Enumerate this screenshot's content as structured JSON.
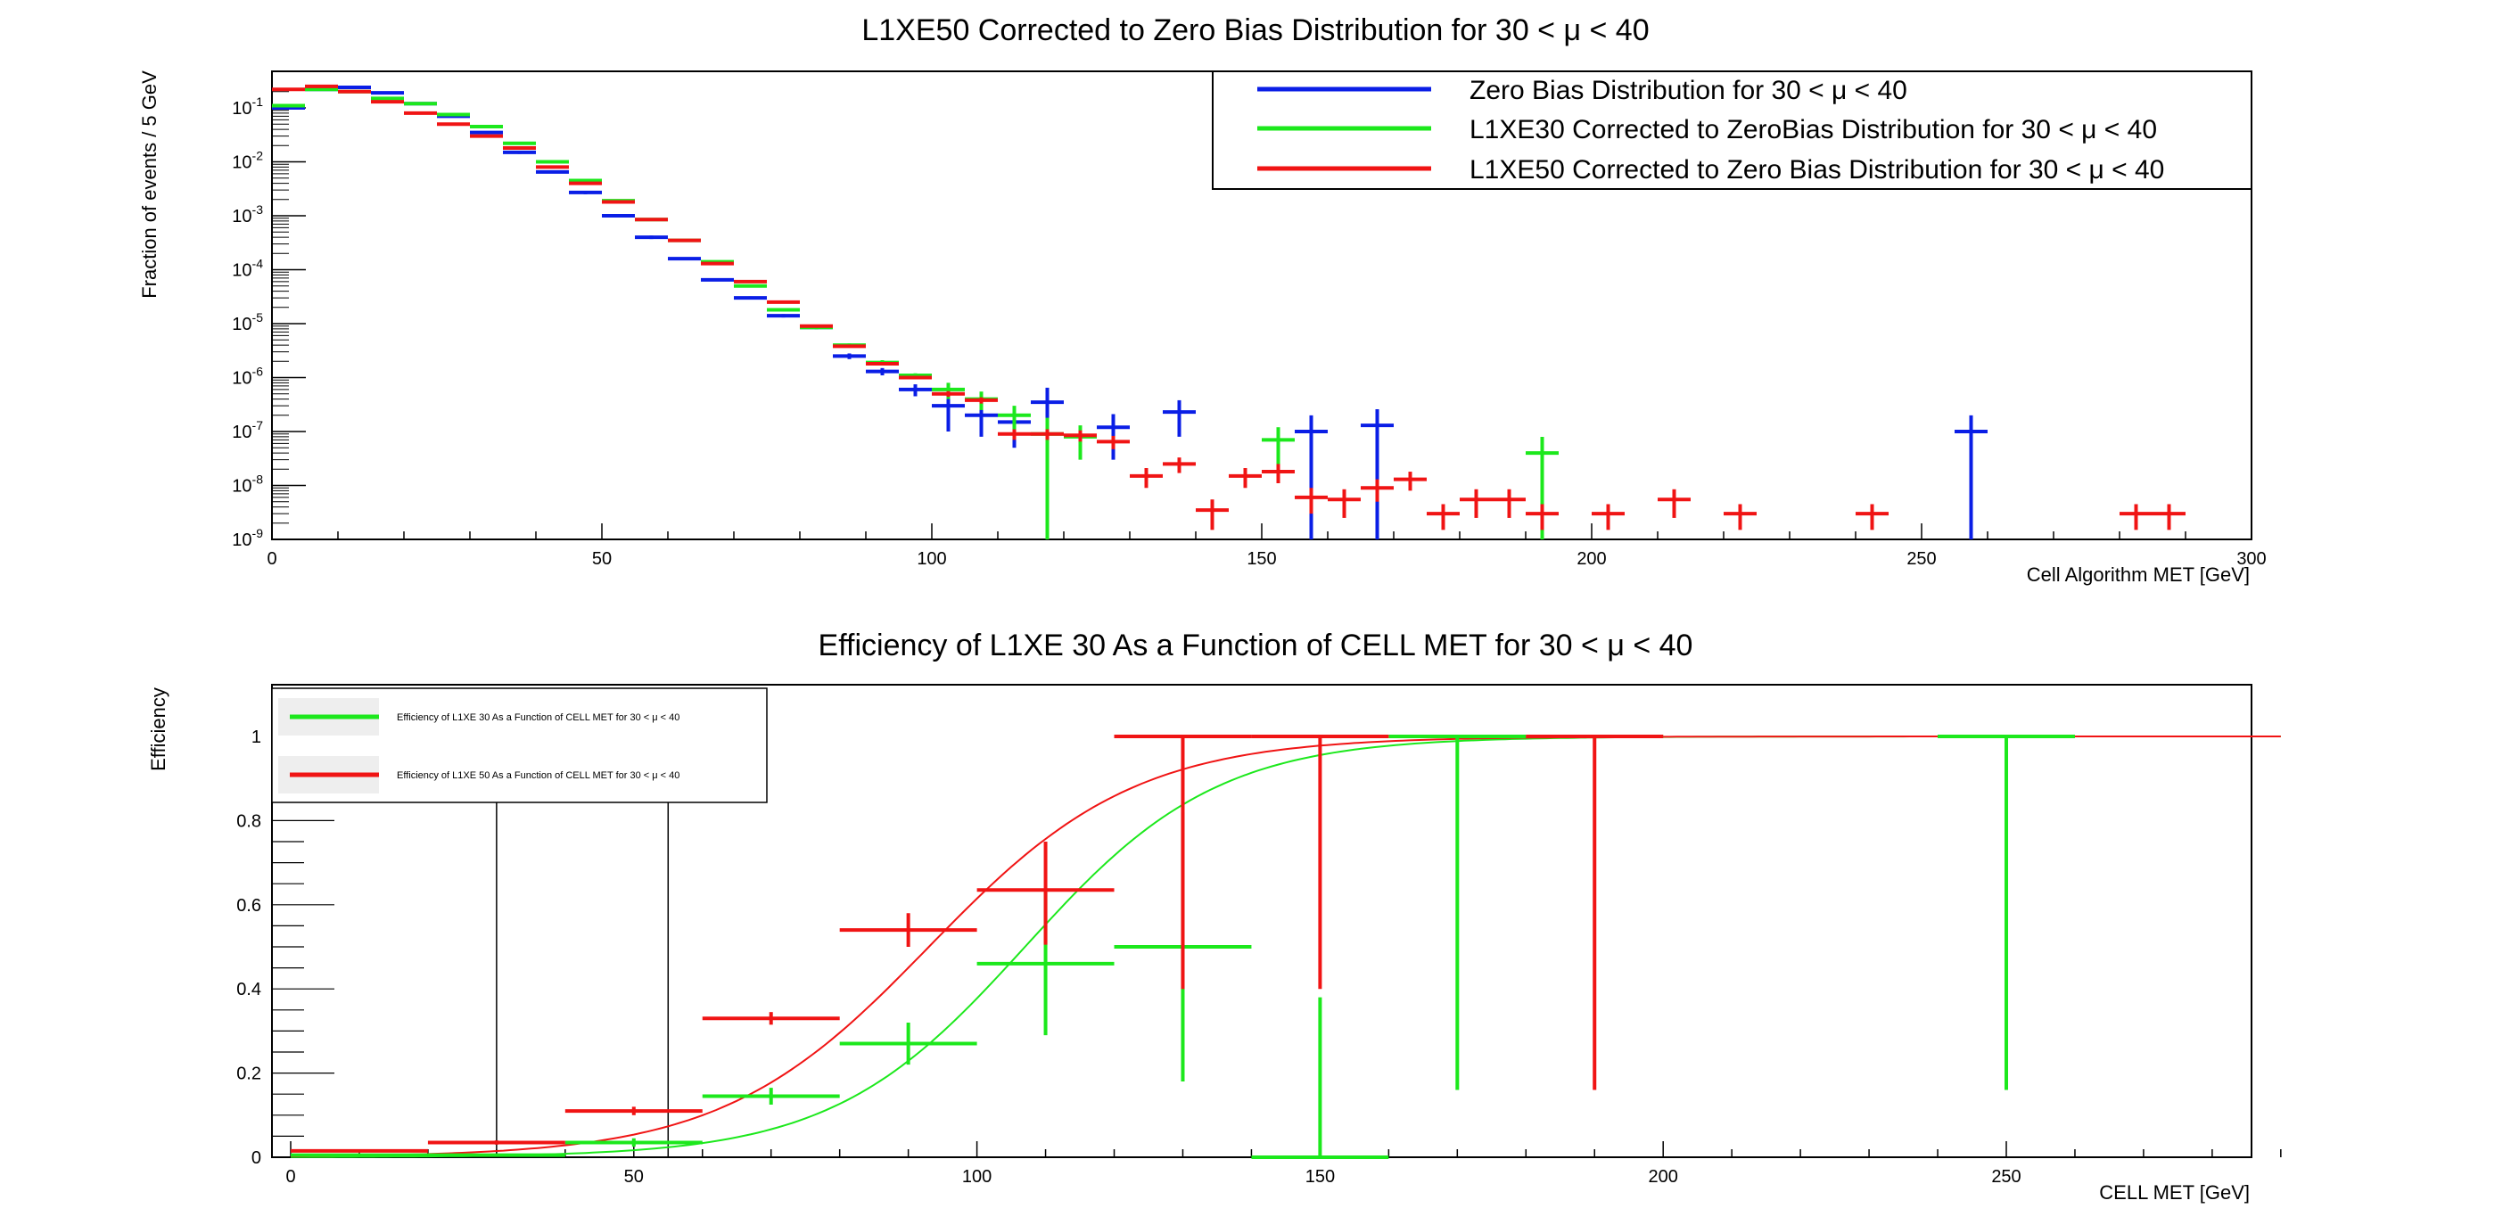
{
  "colors": {
    "blue": "#0a1ee6",
    "green": "#1ce81c",
    "red": "#f01414",
    "frame": "#000000"
  },
  "chart_data": [
    {
      "type": "scatter",
      "title": "L1XE50 Corrected to Zero Bias Distribution for 30 < μ < 40",
      "xlabel": "Cell Algorithm MET [GeV]",
      "ylabel": "Fraction of events / 5 GeV",
      "xlim": [
        0,
        300
      ],
      "ylim": [
        1e-09,
        0.3
      ],
      "yscale": "log",
      "grid": false,
      "legend_position": "top-right",
      "x_ticks": [
        "0",
        "50",
        "100",
        "150",
        "200",
        "250",
        "300"
      ],
      "y_ticks": [
        "10^-1",
        "10^-2",
        "10^-3",
        "10^-4",
        "10^-5",
        "10^-6",
        "10^-7",
        "10^-8",
        "10^-9"
      ],
      "bin_width": 5,
      "series": [
        {
          "name": "Zero Bias Distribution for 30 < μ < 40",
          "color": "blue",
          "x": [
            2.5,
            7.5,
            12.5,
            17.5,
            22.5,
            27.5,
            32.5,
            37.5,
            42.5,
            47.5,
            52.5,
            57.5,
            62.5,
            67.5,
            72.5,
            77.5,
            82.5,
            87.5,
            92.5,
            97.5,
            102.5,
            107.5,
            112.5,
            117.5,
            127.5,
            137.5,
            157.5,
            167.5,
            257.5
          ],
          "y": [
            0.1,
            0.22,
            0.24,
            0.19,
            0.12,
            0.07,
            0.035,
            0.015,
            0.0065,
            0.0027,
            0.001,
            0.0004,
            0.00016,
            6.5e-05,
            3e-05,
            1.4e-05,
            8.5e-06,
            2.5e-06,
            1.3e-06,
            6e-07,
            3e-07,
            2e-07,
            1.5e-07,
            3.5e-07,
            1.2e-07,
            2.3e-07,
            1e-07,
            1.3e-07,
            1e-07
          ],
          "yerr": [
            0.005,
            0.01,
            0.01,
            0.008,
            0.006,
            0.004,
            0.002,
            0.001,
            0.0004,
            0.0002,
            7e-05,
            3e-05,
            1e-05,
            4e-06,
            2e-06,
            1e-06,
            6e-07,
            3e-07,
            2e-07,
            1.5e-07,
            2e-07,
            1.2e-07,
            1e-07,
            3e-07,
            9e-08,
            1.5e-07,
            9.95e-08,
            1.295e-07,
            9.95e-08
          ]
        },
        {
          "name": "L1XE30 Corrected to ZeroBias Distribution for 30 < μ < 40",
          "color": "green",
          "x": [
            2.5,
            7.5,
            12.5,
            17.5,
            22.5,
            27.5,
            32.5,
            37.5,
            42.5,
            47.5,
            52.5,
            57.5,
            62.5,
            67.5,
            72.5,
            77.5,
            82.5,
            87.5,
            92.5,
            97.5,
            102.5,
            107.5,
            112.5,
            117.5,
            122.5,
            152.5,
            192.5
          ],
          "y": [
            0.11,
            0.22,
            0.2,
            0.15,
            0.12,
            0.075,
            0.045,
            0.022,
            0.01,
            0.0045,
            0.0019,
            0.00085,
            0.00035,
            0.00014,
            5e-05,
            1.8e-05,
            8.5e-06,
            4e-06,
            1.9e-06,
            1.1e-06,
            6e-07,
            4e-07,
            2e-07,
            9e-08,
            8e-08,
            7e-08,
            4e-08
          ],
          "yerr": [
            0.005,
            0.01,
            0.008,
            0.006,
            0.005,
            0.003,
            0.002,
            0.001,
            0.0005,
            0.0002,
            0.0001,
            4e-05,
            2e-05,
            7e-06,
            3e-06,
            1e-06,
            6e-07,
            3e-07,
            2e-07,
            1e-07,
            2e-07,
            1.5e-07,
            1e-07,
            8.95e-08,
            5e-08,
            5e-08,
            3.95e-08
          ]
        },
        {
          "name": "L1XE50 Corrected to Zero Bias Distribution for 30 < μ < 40",
          "color": "red",
          "x": [
            2.5,
            7.5,
            12.5,
            17.5,
            22.5,
            27.5,
            32.5,
            37.5,
            42.5,
            47.5,
            52.5,
            57.5,
            62.5,
            67.5,
            72.5,
            77.5,
            82.5,
            87.5,
            92.5,
            97.5,
            102.5,
            107.5,
            112.5,
            117.5,
            122.5,
            127.5,
            132.5,
            137.5,
            142.5,
            147.5,
            152.5,
            157.5,
            162.5,
            167.5,
            172.5,
            177.5,
            182.5,
            187.5,
            192.5,
            202.5,
            212.5,
            222.5,
            242.5,
            282.5,
            287.5
          ],
          "y": [
            0.22,
            0.25,
            0.2,
            0.13,
            0.08,
            0.05,
            0.03,
            0.018,
            0.008,
            0.004,
            0.0018,
            0.00085,
            0.00035,
            0.00013,
            6e-05,
            2.5e-05,
            9e-06,
            3.8e-06,
            1.8e-06,
            1e-06,
            5e-07,
            3.8e-07,
            9e-08,
            9e-08,
            8.5e-08,
            6.5e-08,
            1.5e-08,
            2.5e-08,
            3.5e-09,
            1.5e-08,
            1.8e-08,
            6e-09,
            5.5e-09,
            9e-09,
            1.3e-08,
            3e-09,
            5.5e-09,
            5.5e-09,
            3e-09,
            3e-09,
            5.5e-09,
            3e-09,
            3e-09,
            3e-09,
            3e-09
          ],
          "yerr": [
            0.01,
            0.01,
            0.008,
            0.006,
            0.004,
            0.003,
            0.002,
            0.001,
            0.0005,
            0.0002,
            0.0001,
            4e-05,
            2e-05,
            7e-06,
            3e-06,
            1e-06,
            5e-07,
            2e-07,
            1e-07,
            7e-08,
            6e-08,
            5e-08,
            2e-08,
            2e-08,
            2e-08,
            1.8e-08,
            6e-09,
            8e-09,
            2e-09,
            6e-09,
            7e-09,
            3e-09,
            3e-09,
            4e-09,
            5e-09,
            1.5e-09,
            3e-09,
            3e-09,
            1.5e-09,
            1.5e-09,
            3e-09,
            1.5e-09,
            1.5e-09,
            1.5e-09,
            1.5e-09
          ]
        }
      ]
    },
    {
      "type": "scatter",
      "title": "Efficiency of L1XE 30 As a Function of CELL MET for 30 < μ < 40",
      "xlabel": "CELL MET [GeV]",
      "ylabel": "Efficiency",
      "xlim": [
        -3,
        290
      ],
      "ylim": [
        0,
        1.1
      ],
      "yscale": "linear",
      "grid": false,
      "legend_position": "top-left",
      "x_ticks": [
        "0",
        "50",
        "100",
        "150",
        "200",
        "250"
      ],
      "y_ticks": [
        "0",
        "0.2",
        "0.4",
        "0.6",
        "0.8",
        "1"
      ],
      "threshold_lines_x": [
        30,
        55
      ],
      "series": [
        {
          "name": "Efficiency of L1XE 30 As a Function of CELL MET for 30 < μ < 40",
          "color": "green",
          "x": [
            10,
            30,
            50,
            70,
            90,
            110,
            130,
            150,
            170,
            190,
            250
          ],
          "xerr": [
            10,
            10,
            10,
            10,
            10,
            10,
            10,
            10,
            10,
            10,
            10
          ],
          "y": [
            0.005,
            0.005,
            0.035,
            0.145,
            0.27,
            0.46,
            0.5,
            0,
            1,
            1,
            1
          ],
          "yerr_low": [
            0.003,
            0.003,
            0.01,
            0.02,
            0.05,
            0.17,
            0.32,
            0,
            0.84,
            0,
            0.84
          ],
          "yerr_high": [
            0.003,
            0.003,
            0.01,
            0.02,
            0.05,
            0.17,
            0.32,
            0.38,
            0,
            0,
            0
          ],
          "fit": {
            "type": "sigmoid",
            "x50": 107,
            "width": 14
          }
        },
        {
          "name": "Efficiency of L1XE 50 As a Function of CELL MET for 30 < μ < 40",
          "color": "red",
          "x": [
            10,
            30,
            50,
            70,
            90,
            110,
            130,
            150,
            190
          ],
          "xerr": [
            10,
            10,
            10,
            10,
            10,
            10,
            10,
            10,
            10
          ],
          "y": [
            0.015,
            0.035,
            0.11,
            0.33,
            0.54,
            0.635,
            1,
            1,
            1
          ],
          "yerr_low": [
            0.003,
            0.005,
            0.01,
            0.015,
            0.04,
            0.13,
            0.6,
            0.6,
            0.84
          ],
          "yerr_high": [
            0.003,
            0.005,
            0.01,
            0.015,
            0.04,
            0.115,
            0,
            0,
            0
          ],
          "fit": {
            "type": "sigmoid",
            "x50": 93,
            "width": 15
          }
        }
      ]
    }
  ]
}
